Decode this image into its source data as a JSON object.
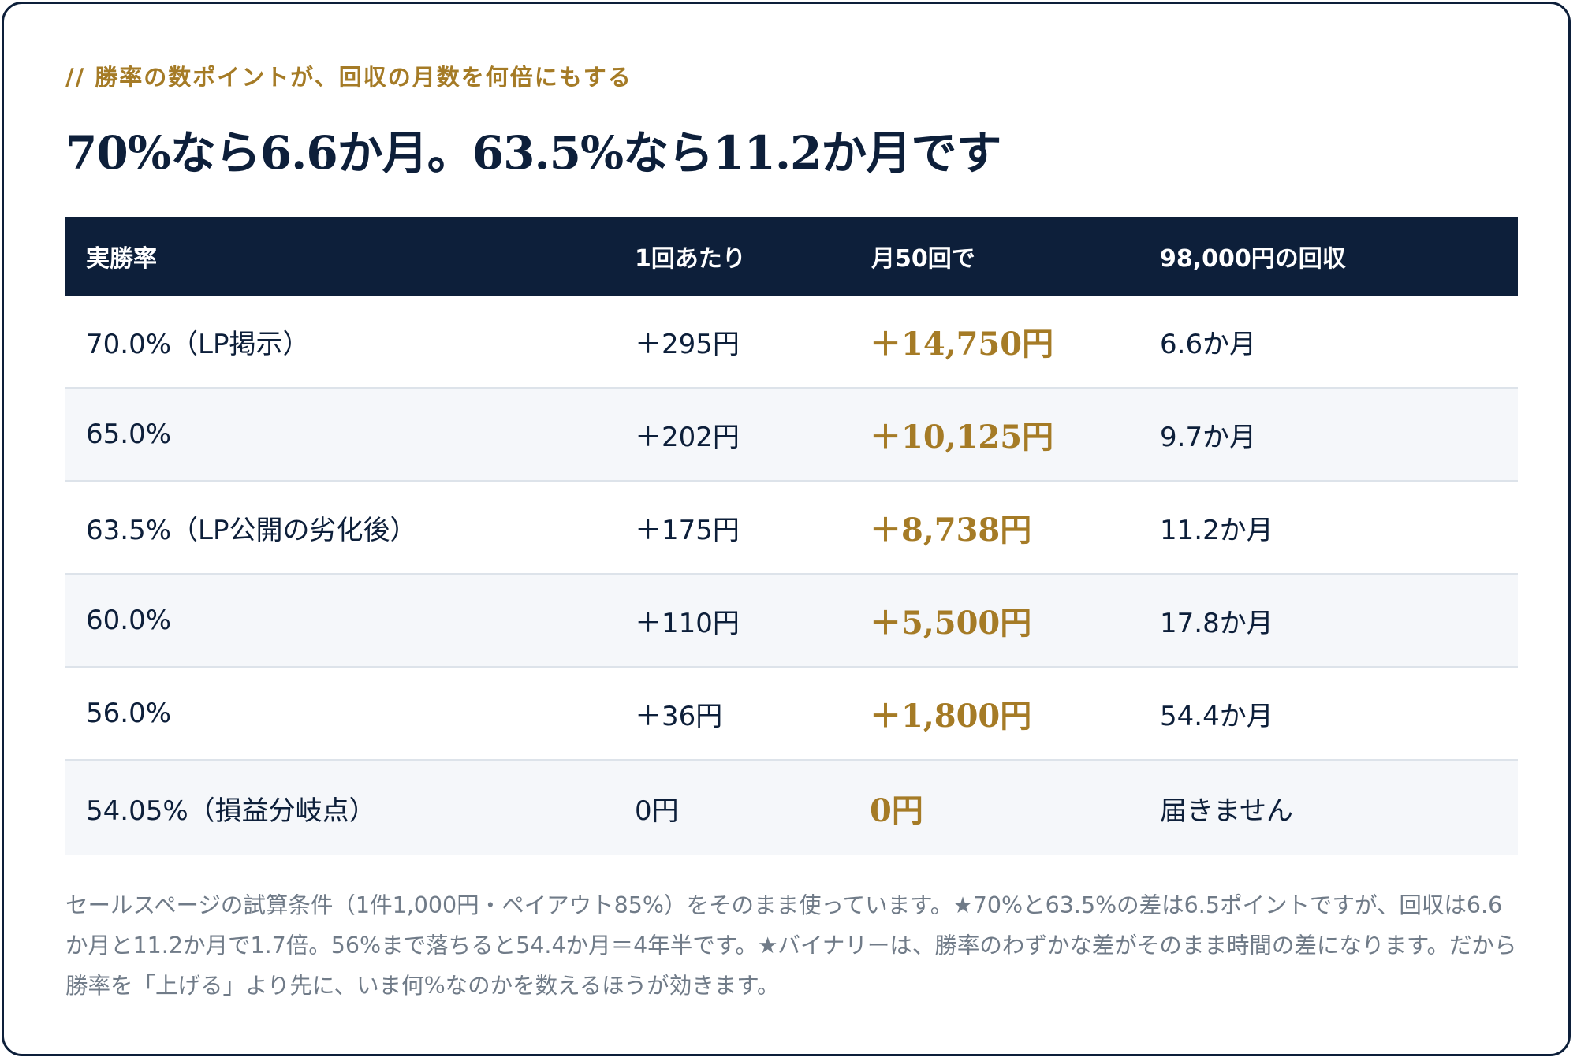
{
  "eyebrow": "// 勝率の数ポイントが、回収の月数を何倍にもする",
  "headline": "70%なら6.6か月。63.5%なら11.2か月です",
  "table": {
    "headers": [
      "実勝率",
      "1回あたり",
      "月50回で",
      "98,000円の回収"
    ],
    "rows": [
      [
        "70.0%（LP掲示）",
        "＋295円",
        "＋14,750円",
        "6.6か月"
      ],
      [
        "65.0%",
        "＋202円",
        "＋10,125円",
        "9.7か月"
      ],
      [
        "63.5%（LP公開の劣化後）",
        "＋175円",
        "＋8,738円",
        "11.2か月"
      ],
      [
        "60.0%",
        "＋110円",
        "＋5,500円",
        "17.8か月"
      ],
      [
        "56.0%",
        "＋36円",
        "＋1,800円",
        "54.4か月"
      ],
      [
        "54.05%（損益分岐点）",
        "0円",
        "0円",
        "届きません"
      ]
    ]
  },
  "note": "セールスページの試算条件（1件1,000円・ペイアウト85%）をそのまま使っています。★70%と63.5%の差は6.5ポイントですが、回収は6.6か月と11.2か月で1.7倍。56%まで落ちると54.4か月＝4年半です。★バイナリーは、勝率のわずかな差がそのまま時間の差になります。だから勝率を「上げる」より先に、いま何%なのかを数えるほうが効きます。",
  "colors": {
    "navy": "#0d1f3a",
    "gold": "#a57b26",
    "muted": "#707b88"
  }
}
